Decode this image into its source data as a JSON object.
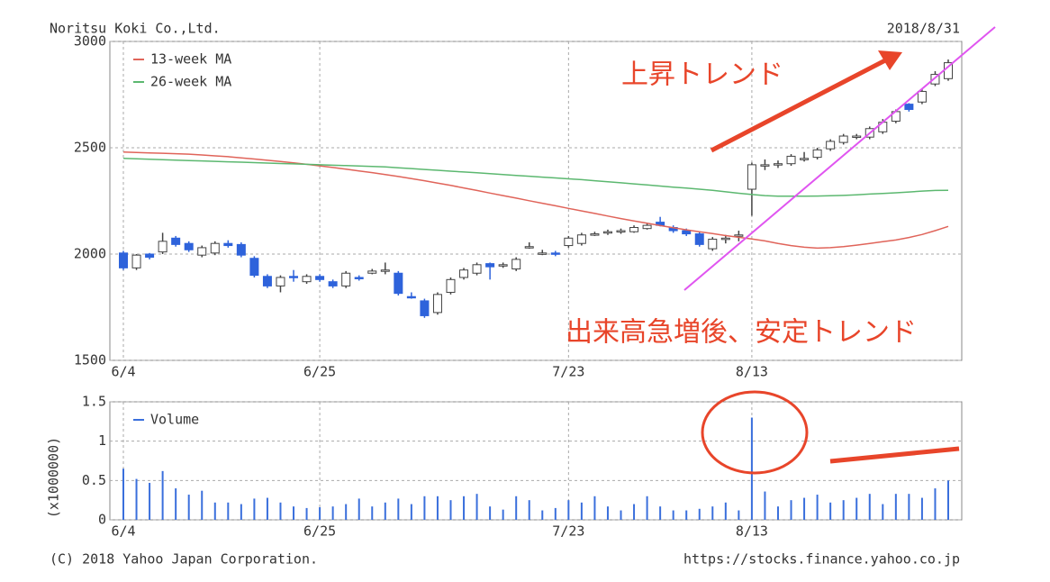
{
  "header": {
    "company": "Noritsu Koki Co.,Ltd.",
    "date": "2018/8/31"
  },
  "footer": {
    "copyright": "(C) 2018 Yahoo Japan Corporation.",
    "url": "https://stocks.finance.yahoo.co.jp"
  },
  "chart_data": [
    {
      "type": "candlestick",
      "annotations": [
        "上昇トレンド",
        "出来高急増後、安定トレンド"
      ],
      "categories": [
        "6/4",
        null,
        null,
        null,
        null,
        null,
        null,
        null,
        null,
        null,
        null,
        null,
        null,
        null,
        null,
        "6/25",
        null,
        null,
        null,
        null,
        null,
        null,
        null,
        null,
        null,
        null,
        null,
        null,
        null,
        null,
        null,
        null,
        null,
        null,
        "7/23",
        null,
        null,
        null,
        null,
        null,
        null,
        null,
        null,
        null,
        null,
        null,
        null,
        null,
        "8/13",
        null,
        null,
        null,
        null,
        null,
        null,
        null,
        null,
        null,
        null,
        null,
        null,
        null,
        null,
        null
      ],
      "open": [
        2005,
        1935,
        2000,
        2010,
        2075,
        2050,
        1995,
        2005,
        2050,
        2045,
        1980,
        1895,
        1850,
        1895,
        1870,
        1895,
        1870,
        1850,
        1890,
        1910,
        1920,
        1910,
        1800,
        1780,
        1725,
        1820,
        1890,
        1910,
        1955,
        1945,
        1930,
        2030,
        2005,
        2005,
        2040,
        2050,
        2090,
        2100,
        2105,
        2105,
        2120,
        2150,
        2125,
        2110,
        2095,
        2025,
        2075,
        2085,
        2305,
        2420,
        2420,
        2425,
        2450,
        2455,
        2495,
        2525,
        2550,
        2550,
        2575,
        2625,
        2705,
        2715,
        2800,
        2825
      ],
      "high": [
        2015,
        2000,
        2005,
        2100,
        2085,
        2060,
        2040,
        2060,
        2065,
        2055,
        1990,
        1905,
        1900,
        1925,
        1905,
        1905,
        1880,
        1920,
        1900,
        1930,
        1960,
        1920,
        1820,
        1790,
        1820,
        1890,
        1935,
        1960,
        1960,
        1960,
        1985,
        2055,
        2020,
        2015,
        2085,
        2100,
        2105,
        2115,
        2120,
        2135,
        2145,
        2175,
        2135,
        2120,
        2105,
        2080,
        2090,
        2110,
        2430,
        2445,
        2440,
        2470,
        2480,
        2500,
        2540,
        2565,
        2565,
        2600,
        2635,
        2680,
        2710,
        2775,
        2860,
        2915
      ],
      "low": [
        1925,
        1925,
        1975,
        2000,
        2035,
        2010,
        1985,
        1995,
        2030,
        1985,
        1890,
        1840,
        1820,
        1870,
        1860,
        1870,
        1840,
        1840,
        1875,
        1905,
        1905,
        1805,
        1790,
        1700,
        1715,
        1810,
        1880,
        1900,
        1880,
        1935,
        1920,
        2025,
        1995,
        1990,
        2030,
        2040,
        2085,
        2090,
        2095,
        2100,
        2115,
        2130,
        2100,
        2085,
        2035,
        2015,
        2050,
        2060,
        2180,
        2395,
        2405,
        2415,
        2435,
        2445,
        2485,
        2515,
        2540,
        2540,
        2565,
        2615,
        2670,
        2705,
        2790,
        2815
      ],
      "close": [
        1935,
        1995,
        1985,
        2060,
        2045,
        2020,
        2030,
        2050,
        2040,
        1995,
        1900,
        1850,
        1890,
        1890,
        1895,
        1880,
        1850,
        1910,
        1885,
        1920,
        1925,
        1815,
        1795,
        1710,
        1810,
        1880,
        1925,
        1950,
        1940,
        1950,
        1975,
        2035,
        2005,
        2000,
        2075,
        2090,
        2095,
        2105,
        2110,
        2125,
        2135,
        2135,
        2110,
        2095,
        2045,
        2070,
        2075,
        2090,
        2420,
        2420,
        2425,
        2460,
        2450,
        2490,
        2530,
        2555,
        2555,
        2590,
        2620,
        2670,
        2680,
        2765,
        2845,
        2900
      ],
      "up_color": "#ffffff",
      "down_color": "#2e63db",
      "series": [
        {
          "name": "13-week MA",
          "color": "#e0645a",
          "values": [
            2480,
            2478,
            2476,
            2474,
            2472,
            2470,
            2466,
            2462,
            2458,
            2452,
            2447,
            2441,
            2435,
            2429,
            2422,
            2415,
            2407,
            2399,
            2391,
            2383,
            2374,
            2365,
            2355,
            2345,
            2334,
            2323,
            2311,
            2299,
            2287,
            2275,
            2263,
            2251,
            2239,
            2227,
            2215,
            2203,
            2191,
            2179,
            2167,
            2156,
            2145,
            2134,
            2124,
            2114,
            2105,
            2096,
            2087,
            2079,
            2071,
            2062,
            2050,
            2040,
            2032,
            2028,
            2030,
            2035,
            2042,
            2050,
            2058,
            2066,
            2078,
            2092,
            2110,
            2130
          ]
        },
        {
          "name": "26-week MA",
          "color": "#5cb870",
          "values": [
            2450,
            2448,
            2446,
            2444,
            2442,
            2440,
            2438,
            2436,
            2434,
            2432,
            2430,
            2428,
            2426,
            2424,
            2422,
            2420,
            2418,
            2416,
            2414,
            2412,
            2410,
            2406,
            2402,
            2398,
            2394,
            2390,
            2386,
            2382,
            2378,
            2374,
            2370,
            2366,
            2362,
            2358,
            2354,
            2350,
            2345,
            2340,
            2335,
            2330,
            2325,
            2320,
            2315,
            2310,
            2305,
            2300,
            2293,
            2286,
            2280,
            2275,
            2272,
            2272,
            2272,
            2273,
            2274,
            2276,
            2279,
            2282,
            2285,
            2288,
            2292,
            2296,
            2299,
            2300
          ]
        }
      ],
      "ylim": [
        1500,
        3000
      ],
      "yticks": [
        1500,
        2000,
        2500,
        3000
      ],
      "grid": true,
      "legend": "top-left"
    },
    {
      "type": "bar",
      "y_label": "(x1000000)",
      "categories": [
        "6/4",
        null,
        null,
        null,
        null,
        null,
        null,
        null,
        null,
        null,
        null,
        null,
        null,
        null,
        null,
        "6/25",
        null,
        null,
        null,
        null,
        null,
        null,
        null,
        null,
        null,
        null,
        null,
        null,
        null,
        null,
        null,
        null,
        null,
        null,
        "7/23",
        null,
        null,
        null,
        null,
        null,
        null,
        null,
        null,
        null,
        null,
        null,
        null,
        null,
        "8/13",
        null,
        null,
        null,
        null,
        null,
        null,
        null,
        null,
        null,
        null,
        null,
        null,
        null,
        null,
        null
      ],
      "series": [
        {
          "name": "Volume",
          "color": "#3a6fdc",
          "values": [
            0.65,
            0.52,
            0.47,
            0.62,
            0.4,
            0.32,
            0.37,
            0.22,
            0.22,
            0.2,
            0.27,
            0.28,
            0.22,
            0.17,
            0.15,
            0.16,
            0.17,
            0.2,
            0.27,
            0.17,
            0.22,
            0.27,
            0.2,
            0.3,
            0.3,
            0.25,
            0.3,
            0.33,
            0.17,
            0.13,
            0.3,
            0.25,
            0.12,
            0.15,
            0.25,
            0.22,
            0.3,
            0.17,
            0.12,
            0.2,
            0.3,
            0.17,
            0.12,
            0.12,
            0.14,
            0.17,
            0.22,
            0.12,
            1.3,
            0.36,
            0.17,
            0.25,
            0.28,
            0.32,
            0.22,
            0.25,
            0.28,
            0.33,
            0.2,
            0.33,
            0.33,
            0.28,
            0.4,
            0.5
          ]
        }
      ],
      "ylim": [
        0,
        1.5
      ],
      "yticks": [
        0,
        0.5,
        1,
        1.5
      ],
      "grid": true,
      "legend": "top-left"
    }
  ]
}
